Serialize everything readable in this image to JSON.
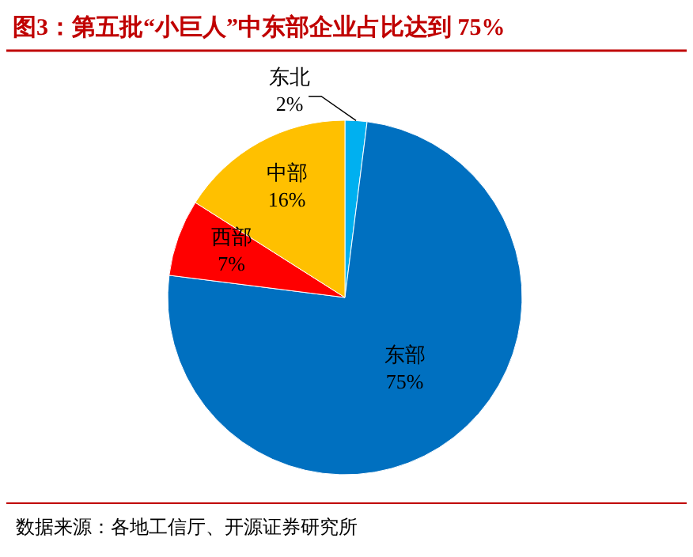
{
  "chart_data": {
    "type": "pie",
    "title": "图3：第五批“小巨人”中东部企业占比达到 75%",
    "categories": [
      "东北",
      "东部",
      "西部",
      "中部"
    ],
    "values": [
      2,
      75,
      7,
      16
    ],
    "colors": [
      "#00b0f0",
      "#0070c0",
      "#ff0000",
      "#ffc000"
    ],
    "value_labels": [
      "2%",
      "75%",
      "7%",
      "16%"
    ],
    "annotations": [
      "数据来源：各地工信厅、开源证券研究所"
    ]
  }
}
